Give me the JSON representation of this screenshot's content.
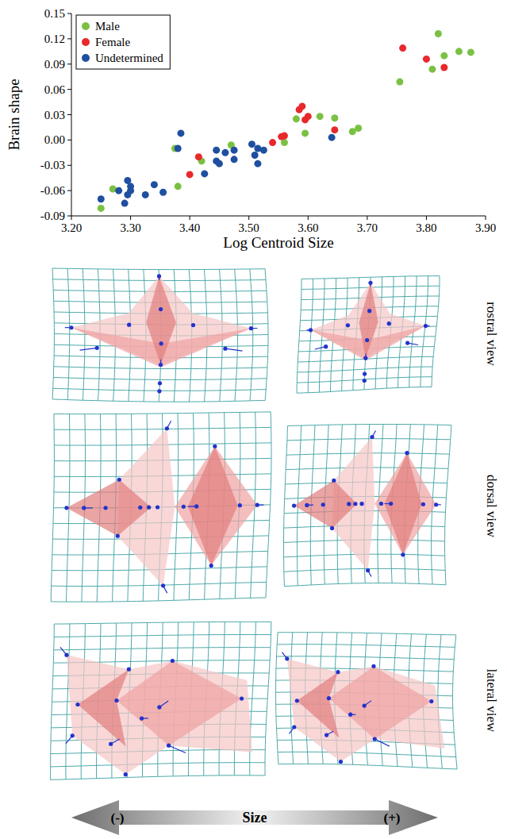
{
  "chart_data": {
    "type": "scatter",
    "x_label": "Log Centroid Size",
    "y_label": "Brain shape",
    "xlim": [
      3.2,
      3.9
    ],
    "ylim": [
      -0.09,
      0.15
    ],
    "xticks": [
      {
        "value": 3.2,
        "label": "3.20"
      },
      {
        "value": 3.3,
        "label": "3.30"
      },
      {
        "value": 3.4,
        "label": "3.40"
      },
      {
        "value": 3.5,
        "label": "3.50"
      },
      {
        "value": 3.6,
        "label": "3.60"
      },
      {
        "value": 3.7,
        "label": "3.70"
      },
      {
        "value": 3.8,
        "label": "3.80"
      },
      {
        "value": 3.9,
        "label": "3.90"
      }
    ],
    "yticks": [
      -0.09,
      -0.06,
      -0.03,
      {
        "value": 0,
        "label": "0.00"
      },
      0.03,
      0.06,
      0.09,
      0.12,
      0.15
    ],
    "grid": false,
    "legend": "upper left",
    "marker": "circle",
    "series": [
      {
        "name": "Male",
        "color": "#7ac143",
        "x": [
          3.25,
          3.27,
          3.375,
          3.38,
          3.42,
          3.47,
          3.56,
          3.58,
          3.595,
          3.62,
          3.645,
          3.675,
          3.685,
          3.755,
          3.81,
          3.82,
          3.83,
          3.855,
          3.875
        ],
        "values": [
          -0.081,
          -0.058,
          -0.01,
          -0.055,
          -0.025,
          -0.006,
          -0.003,
          0.025,
          0.008,
          0.028,
          0.026,
          0.01,
          0.014,
          0.069,
          0.084,
          0.126,
          0.1,
          0.105,
          0.104
        ]
      },
      {
        "name": "Female",
        "color": "#e8282b",
        "x": [
          3.4,
          3.415,
          3.54,
          3.555,
          3.56,
          3.585,
          3.59,
          3.595,
          3.6,
          3.645,
          3.76,
          3.8,
          3.83
        ],
        "values": [
          -0.041,
          -0.02,
          -0.003,
          0.004,
          0.005,
          0.036,
          0.04,
          0.024,
          0.028,
          0.012,
          0.109,
          0.096,
          0.086
        ]
      },
      {
        "name": "Undetermined",
        "color": "#1f4fa0",
        "x": [
          3.25,
          3.28,
          3.29,
          3.295,
          3.295,
          3.3,
          3.3,
          3.325,
          3.34,
          3.355,
          3.38,
          3.385,
          3.425,
          3.445,
          3.445,
          3.45,
          3.46,
          3.475,
          3.475,
          3.505,
          3.51,
          3.515,
          3.515,
          3.525,
          3.64
        ],
        "values": [
          -0.07,
          -0.06,
          -0.075,
          -0.065,
          -0.048,
          -0.055,
          -0.06,
          -0.065,
          -0.053,
          -0.062,
          -0.01,
          0.008,
          -0.04,
          -0.025,
          -0.012,
          -0.028,
          -0.015,
          -0.023,
          -0.012,
          -0.005,
          -0.018,
          -0.01,
          -0.028,
          -0.012,
          0.003
        ]
      }
    ]
  },
  "figure": {
    "views": [
      "rostral view",
      "dorsal view",
      "lateral view"
    ],
    "size_axis": {
      "label": "Size",
      "minus": "(-)",
      "plus": "(+)"
    }
  }
}
